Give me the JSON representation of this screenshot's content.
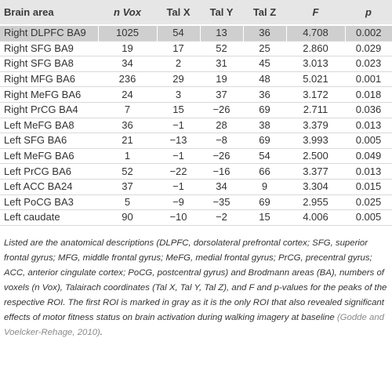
{
  "table": {
    "headers": {
      "area": "Brain area",
      "vox": "n Vox",
      "talx": "Tal X",
      "taly": "Tal Y",
      "talz": "Tal Z",
      "f": "F",
      "p": "p"
    },
    "rows": [
      {
        "area": "Right DLPFC BA9",
        "vox": "1025",
        "talx": "54",
        "taly": "13",
        "talz": "36",
        "f": "4.708",
        "p": "0.002"
      },
      {
        "area": "Right SFG BA9",
        "vox": "19",
        "talx": "17",
        "taly": "52",
        "talz": "25",
        "f": "2.860",
        "p": "0.029"
      },
      {
        "area": "Right SFG BA8",
        "vox": "34",
        "talx": "2",
        "taly": "31",
        "talz": "45",
        "f": "3.013",
        "p": "0.023"
      },
      {
        "area": "Right MFG BA6",
        "vox": "236",
        "talx": "29",
        "taly": "19",
        "talz": "48",
        "f": "5.021",
        "p": "0.001"
      },
      {
        "area": "Right MeFG BA6",
        "vox": "24",
        "talx": "3",
        "taly": "37",
        "talz": "36",
        "f": "3.172",
        "p": "0.018"
      },
      {
        "area": "Right PrCG BA4",
        "vox": "7",
        "talx": "15",
        "taly": "−26",
        "talz": "69",
        "f": "2.711",
        "p": "0.036"
      },
      {
        "area": "Left MeFG BA8",
        "vox": "36",
        "talx": "−1",
        "taly": "28",
        "talz": "38",
        "f": "3.379",
        "p": "0.013"
      },
      {
        "area": "Left SFG BA6",
        "vox": "21",
        "talx": "−13",
        "taly": "−8",
        "talz": "69",
        "f": "3.993",
        "p": "0.005"
      },
      {
        "area": "Left MeFG BA6",
        "vox": "1",
        "talx": "−1",
        "taly": "−26",
        "talz": "54",
        "f": "2.500",
        "p": "0.049"
      },
      {
        "area": "Left PrCG BA6",
        "vox": "52",
        "talx": "−22",
        "taly": "−16",
        "talz": "66",
        "f": "3.377",
        "p": "0.013"
      },
      {
        "area": "Left ACC BA24",
        "vox": "37",
        "talx": "−1",
        "taly": "34",
        "talz": "9",
        "f": "3.304",
        "p": "0.015"
      },
      {
        "area": "Left PoCG BA3",
        "vox": "5",
        "talx": "−9",
        "taly": "−35",
        "talz": "69",
        "f": "2.955",
        "p": "0.025"
      },
      {
        "area": "Left caudate",
        "vox": "90",
        "talx": "−10",
        "taly": "−2",
        "talz": "15",
        "f": "4.006",
        "p": "0.005"
      }
    ]
  },
  "note": {
    "text": "Listed are the anatomical descriptions (DLPFC, dorsolateral prefrontal cortex; SFG, superior frontal gyrus; MFG, middle frontal gyrus; MeFG, medial frontal gyrus; PrCG, precentral gyrus; ACC, anterior cingulate cortex; PoCG, postcentral gyrus) and Brodmann areas (BA), numbers of voxels (n Vox), Talairach coordinates (Tal X, Tal Y, Tal Z), and F and p-values for the peaks of the respective ROI. The first ROI is marked in gray as it is the only ROI that also revealed significant effects of motor fitness status on brain activation during walking imagery at baseline ",
    "citation": "(Godde and Voelcker-Rehage, 2010)",
    "end": "."
  }
}
